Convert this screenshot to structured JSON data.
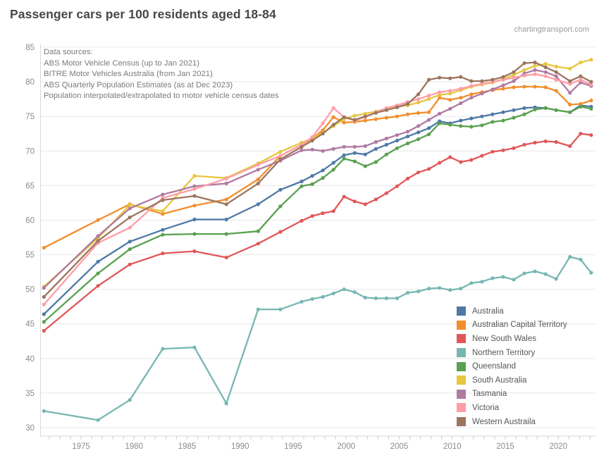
{
  "header": {
    "title": "Passenger cars per 100 residents aged 18-84",
    "watermark": "chartingtransport.com"
  },
  "annotation": {
    "lines": [
      "Data sources:",
      "ABS Motor Vehicle Census (up to Jan 2021)",
      "BITRE Motor Vehicles Australia (from Jan 2021)",
      "ABS Quarterly Population Estimates (as at Dec 2023)",
      "Population interpolated/extrapolated to motor vehicle census dates"
    ]
  },
  "chart_data": {
    "type": "line",
    "title": "Passenger cars per 100 residents aged 18-84",
    "xlabel": "",
    "ylabel": "",
    "grid": "horizontal",
    "legend_position": "inside-bottom-right",
    "ylim": [
      30,
      85
    ],
    "xlim": [
      1971,
      2024
    ],
    "y_ticks": [
      30,
      35,
      40,
      45,
      50,
      55,
      60,
      65,
      70,
      75,
      80,
      85
    ],
    "x_tick_labels": [
      "1975",
      "1980",
      "1985",
      "1990",
      "1995",
      "2000",
      "2005",
      "2010",
      "2015",
      "2020"
    ],
    "x_tick_years": [
      1975,
      1980,
      1985,
      1990,
      1995,
      2000,
      2005,
      2010,
      2015,
      2020
    ],
    "x": [
      1971.5,
      1976.6,
      1979.6,
      1982.7,
      1985.7,
      1988.7,
      1991.7,
      1993.8,
      1995.8,
      1996.8,
      1997.8,
      1998.8,
      1999.8,
      2000.8,
      2001.8,
      2002.8,
      2003.8,
      2004.8,
      2005.8,
      2006.8,
      2007.8,
      2008.8,
      2009.8,
      2010.8,
      2011.8,
      2012.8,
      2013.8,
      2014.8,
      2015.8,
      2016.8,
      2017.8,
      2018.8,
      2019.8,
      2021.1,
      2022.1,
      2023.1
    ],
    "series": [
      {
        "name": "Australia",
        "color": "#4e79a7",
        "values": [
          46.4,
          54.0,
          56.9,
          58.6,
          60.1,
          60.1,
          62.3,
          64.4,
          65.6,
          66.4,
          67.2,
          68.3,
          69.4,
          69.7,
          69.5,
          70.3,
          70.9,
          71.5,
          72.1,
          72.7,
          73.3,
          74.3,
          74.0,
          74.4,
          74.7,
          75.0,
          75.3,
          75.6,
          75.9,
          76.2,
          76.3,
          76.2,
          75.9,
          75.6,
          76.6,
          76.4
        ]
      },
      {
        "name": "Australian Capital Territory",
        "color": "#f28e2b",
        "values": [
          56.0,
          60.0,
          62.3,
          60.9,
          62.1,
          63.0,
          65.9,
          69.3,
          70.9,
          71.8,
          73.0,
          74.9,
          74.1,
          74.2,
          74.4,
          74.6,
          74.8,
          75.0,
          75.3,
          75.5,
          75.6,
          77.7,
          77.4,
          77.7,
          78.2,
          78.5,
          78.8,
          79.0,
          79.2,
          79.3,
          79.3,
          79.2,
          78.7,
          76.7,
          76.8,
          77.3
        ]
      },
      {
        "name": "New South Wales",
        "color": "#e15759",
        "values": [
          44.0,
          50.5,
          53.6,
          55.2,
          55.5,
          54.6,
          56.6,
          58.3,
          59.9,
          60.6,
          61.0,
          61.3,
          63.4,
          62.7,
          62.3,
          63.0,
          63.9,
          64.9,
          66.0,
          66.9,
          67.4,
          68.3,
          69.1,
          68.4,
          68.7,
          69.3,
          69.9,
          70.1,
          70.4,
          70.9,
          71.2,
          71.4,
          71.3,
          70.7,
          72.5,
          72.3
        ]
      },
      {
        "name": "Northern Territory",
        "color": "#76b7b2",
        "values": [
          32.4,
          31.1,
          34.0,
          41.4,
          41.6,
          33.5,
          47.1,
          47.1,
          48.2,
          48.6,
          48.9,
          49.4,
          50.0,
          49.6,
          48.8,
          48.7,
          48.7,
          48.7,
          49.5,
          49.7,
          50.1,
          50.2,
          49.9,
          50.1,
          50.9,
          51.1,
          51.6,
          51.8,
          51.4,
          52.3,
          52.6,
          52.2,
          51.5,
          54.7,
          54.3,
          52.4
        ]
      },
      {
        "name": "Queensland",
        "color": "#59a14f",
        "values": [
          45.3,
          52.3,
          55.8,
          57.9,
          58.0,
          58.0,
          58.4,
          62.0,
          64.9,
          65.2,
          66.1,
          67.3,
          68.9,
          68.5,
          67.8,
          68.4,
          69.5,
          70.4,
          71.1,
          71.7,
          72.4,
          74.0,
          73.8,
          73.6,
          73.5,
          73.7,
          74.2,
          74.4,
          74.8,
          75.3,
          76.0,
          76.2,
          75.9,
          75.6,
          76.4,
          76.1
        ]
      },
      {
        "name": "South Australia",
        "color": "#e8c63f",
        "values": [
          50.4,
          57.4,
          62.2,
          61.3,
          66.4,
          66.1,
          68.2,
          69.9,
          71.2,
          71.8,
          72.6,
          73.6,
          74.6,
          75.1,
          75.4,
          75.7,
          76.1,
          76.4,
          76.6,
          77.0,
          77.5,
          78.1,
          78.3,
          78.8,
          79.3,
          79.6,
          79.9,
          80.4,
          81.0,
          81.7,
          82.3,
          82.6,
          82.2,
          81.9,
          82.8,
          83.2
        ]
      },
      {
        "name": "Tasmania",
        "color": "#b07aa1",
        "values": [
          50.2,
          57.7,
          61.7,
          63.7,
          64.9,
          65.3,
          67.3,
          68.6,
          70.1,
          70.2,
          70.0,
          70.3,
          70.6,
          70.6,
          70.7,
          71.3,
          71.8,
          72.3,
          72.8,
          73.6,
          74.5,
          75.4,
          76.1,
          76.9,
          77.7,
          78.3,
          78.9,
          79.5,
          80.1,
          81.2,
          81.7,
          81.4,
          80.8,
          78.4,
          79.9,
          79.4
        ]
      },
      {
        "name": "Victoria",
        "color": "#ff9da7",
        "values": [
          47.8,
          56.7,
          58.9,
          63.2,
          64.5,
          66.0,
          68.0,
          69.3,
          70.9,
          72.0,
          74.0,
          76.2,
          74.9,
          74.4,
          74.9,
          75.6,
          76.2,
          76.6,
          77.1,
          77.5,
          78.0,
          78.5,
          78.7,
          79.0,
          79.4,
          79.7,
          80.0,
          80.3,
          80.6,
          80.9,
          81.1,
          80.8,
          80.3,
          79.7,
          80.3,
          79.6
        ]
      },
      {
        "name": "Western Austraila",
        "color": "#9c755f",
        "values": [
          48.9,
          57.0,
          60.4,
          62.9,
          63.5,
          62.3,
          65.3,
          68.8,
          70.6,
          71.5,
          72.5,
          73.8,
          74.9,
          74.5,
          75.0,
          75.5,
          75.9,
          76.3,
          76.8,
          78.2,
          80.3,
          80.6,
          80.5,
          80.7,
          80.1,
          80.1,
          80.3,
          80.7,
          81.4,
          82.7,
          82.8,
          82.1,
          81.4,
          80.1,
          80.8,
          80.0
        ]
      }
    ]
  }
}
